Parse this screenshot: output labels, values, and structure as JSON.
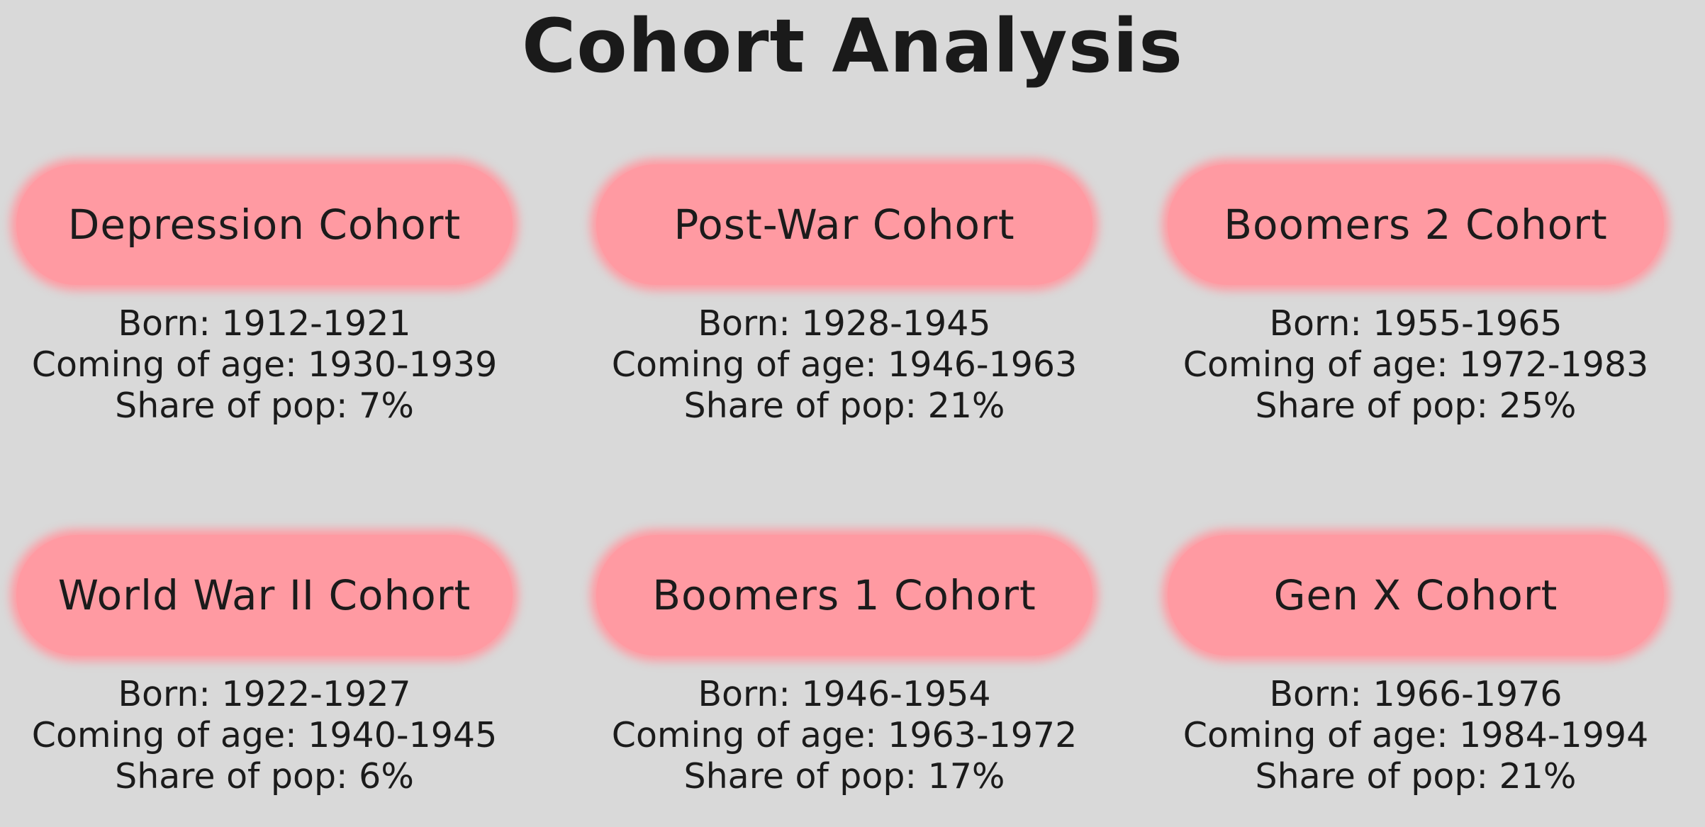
{
  "title": "Cohort Analysis",
  "colors": {
    "background": "#d9d9d9",
    "pill": "#ff9aa2",
    "text": "#1b1b1b"
  },
  "cohorts": [
    {
      "name": "Depression Cohort",
      "born": "Born: 1912-1921",
      "coming_of_age": "Coming of age: 1930-1939",
      "share": "Share of pop: 7%"
    },
    {
      "name": "Post-War Cohort",
      "born": "Born: 1928-1945",
      "coming_of_age": "Coming of age: 1946-1963",
      "share": "Share of pop: 21%"
    },
    {
      "name": "Boomers 2 Cohort",
      "born": "Born: 1955-1965",
      "coming_of_age": "Coming of age: 1972-1983",
      "share": "Share of pop: 25%"
    },
    {
      "name": "World War II Cohort",
      "born": "Born: 1922-1927",
      "coming_of_age": "Coming of age: 1940-1945",
      "share": "Share of pop: 6%"
    },
    {
      "name": "Boomers 1 Cohort",
      "born": "Born: 1946-1954",
      "coming_of_age": "Coming of age: 1963-1972",
      "share": "Share of pop: 17%"
    },
    {
      "name": "Gen X Cohort",
      "born": "Born: 1966-1976",
      "coming_of_age": "Coming of age: 1984-1994",
      "share": "Share of pop: 21%"
    }
  ]
}
